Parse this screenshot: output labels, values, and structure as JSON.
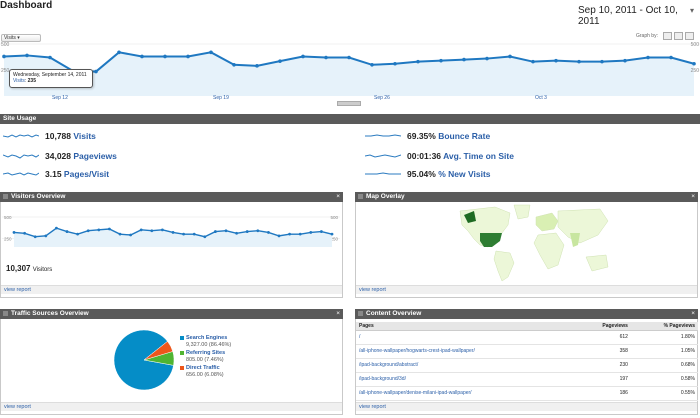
{
  "header": {
    "title": "Dashboard",
    "date_range": "Sep 10, 2011 - Oct 10, 2011",
    "dropdown_icon": "chevron-down-icon"
  },
  "main_chart": {
    "metric_selector": "Visits",
    "graph_by_label": "Graph by:",
    "tooltip": {
      "date": "Wednesday, September 14, 2011",
      "metric": "Visits",
      "value": "235"
    },
    "y_labels": [
      "500",
      "250",
      "500",
      "250"
    ],
    "x_labels": [
      "Sep 12",
      "Sep 19",
      "Sep 26",
      "Oct 3"
    ]
  },
  "chart_data": {
    "type": "line",
    "title": "",
    "x": [
      "Sep 10",
      "Sep 11",
      "Sep 12",
      "Sep 13",
      "Sep 14",
      "Sep 15",
      "Sep 16",
      "Sep 17",
      "Sep 18",
      "Sep 19",
      "Sep 20",
      "Sep 21",
      "Sep 22",
      "Sep 23",
      "Sep 24",
      "Sep 25",
      "Sep 26",
      "Sep 27",
      "Sep 28",
      "Sep 29",
      "Sep 30",
      "Oct 1",
      "Oct 2",
      "Oct 3",
      "Oct 4",
      "Oct 5",
      "Oct 6",
      "Oct 7",
      "Oct 8",
      "Oct 9",
      "Oct 10"
    ],
    "series": [
      {
        "name": "Visits",
        "values": [
          380,
          390,
          370,
          240,
          235,
          420,
          380,
          380,
          380,
          420,
          300,
          290,
          335,
          380,
          370,
          370,
          300,
          310,
          330,
          340,
          350,
          360,
          380,
          330,
          340,
          330,
          330,
          340,
          370,
          370,
          310
        ]
      }
    ],
    "ylim": [
      0,
      500
    ],
    "grid": true
  },
  "site_usage": {
    "title": "Site Usage",
    "left": [
      {
        "value": "10,788",
        "label": "Visits"
      },
      {
        "value": "34,028",
        "label": "Pageviews"
      },
      {
        "value": "3.15",
        "label": "Pages/Visit"
      }
    ],
    "right": [
      {
        "value": "69.35%",
        "label": "Bounce Rate"
      },
      {
        "value": "00:01:36",
        "label": "Avg. Time on Site"
      },
      {
        "value": "95.04%",
        "label": "% New Visits"
      }
    ]
  },
  "visitors_overview": {
    "title": "Visitors Overview",
    "total": "10,307",
    "total_label": "Visitors",
    "y_labels": [
      "500",
      "250"
    ],
    "view_report": "view report",
    "values": [
      320,
      310,
      270,
      280,
      370,
      330,
      300,
      340,
      350,
      360,
      300,
      290,
      350,
      340,
      350,
      320,
      300,
      300,
      270,
      330,
      340,
      310,
      330,
      340,
      320,
      280,
      300,
      300,
      320,
      330,
      300
    ]
  },
  "map_overlay": {
    "title": "Map Overlay",
    "view_report": "view report"
  },
  "traffic_sources": {
    "title": "Traffic Sources Overview",
    "view_report": "view report",
    "items": [
      {
        "name": "Search Engines",
        "value": "9,327.00 (86.46%)",
        "color": "#058dc7",
        "share": 0.8646
      },
      {
        "name": "Referring Sites",
        "value": "805.00 (7.46%)",
        "color": "#50b432",
        "share": 0.0746
      },
      {
        "name": "Direct Traffic",
        "value": "656.00 (6.08%)",
        "color": "#ed561b",
        "share": 0.0608
      }
    ]
  },
  "content_overview": {
    "title": "Content Overview",
    "view_report": "view report",
    "columns": [
      "Pages",
      "Pageviews",
      "% Pageviews"
    ],
    "rows": [
      [
        "/",
        "612",
        "1.80%"
      ],
      [
        "/all-iphone-wallpaper/hogwarts-crest-ipad-wallpaper/",
        "358",
        "1.05%"
      ],
      [
        "/ipad-background/abstract/",
        "230",
        "0.68%"
      ],
      [
        "/ipad-background/3d/",
        "197",
        "0.58%"
      ],
      [
        "/all-iphone-wallpaper/denise-milani-ipad-wallpaper/",
        "186",
        "0.55%"
      ]
    ]
  }
}
